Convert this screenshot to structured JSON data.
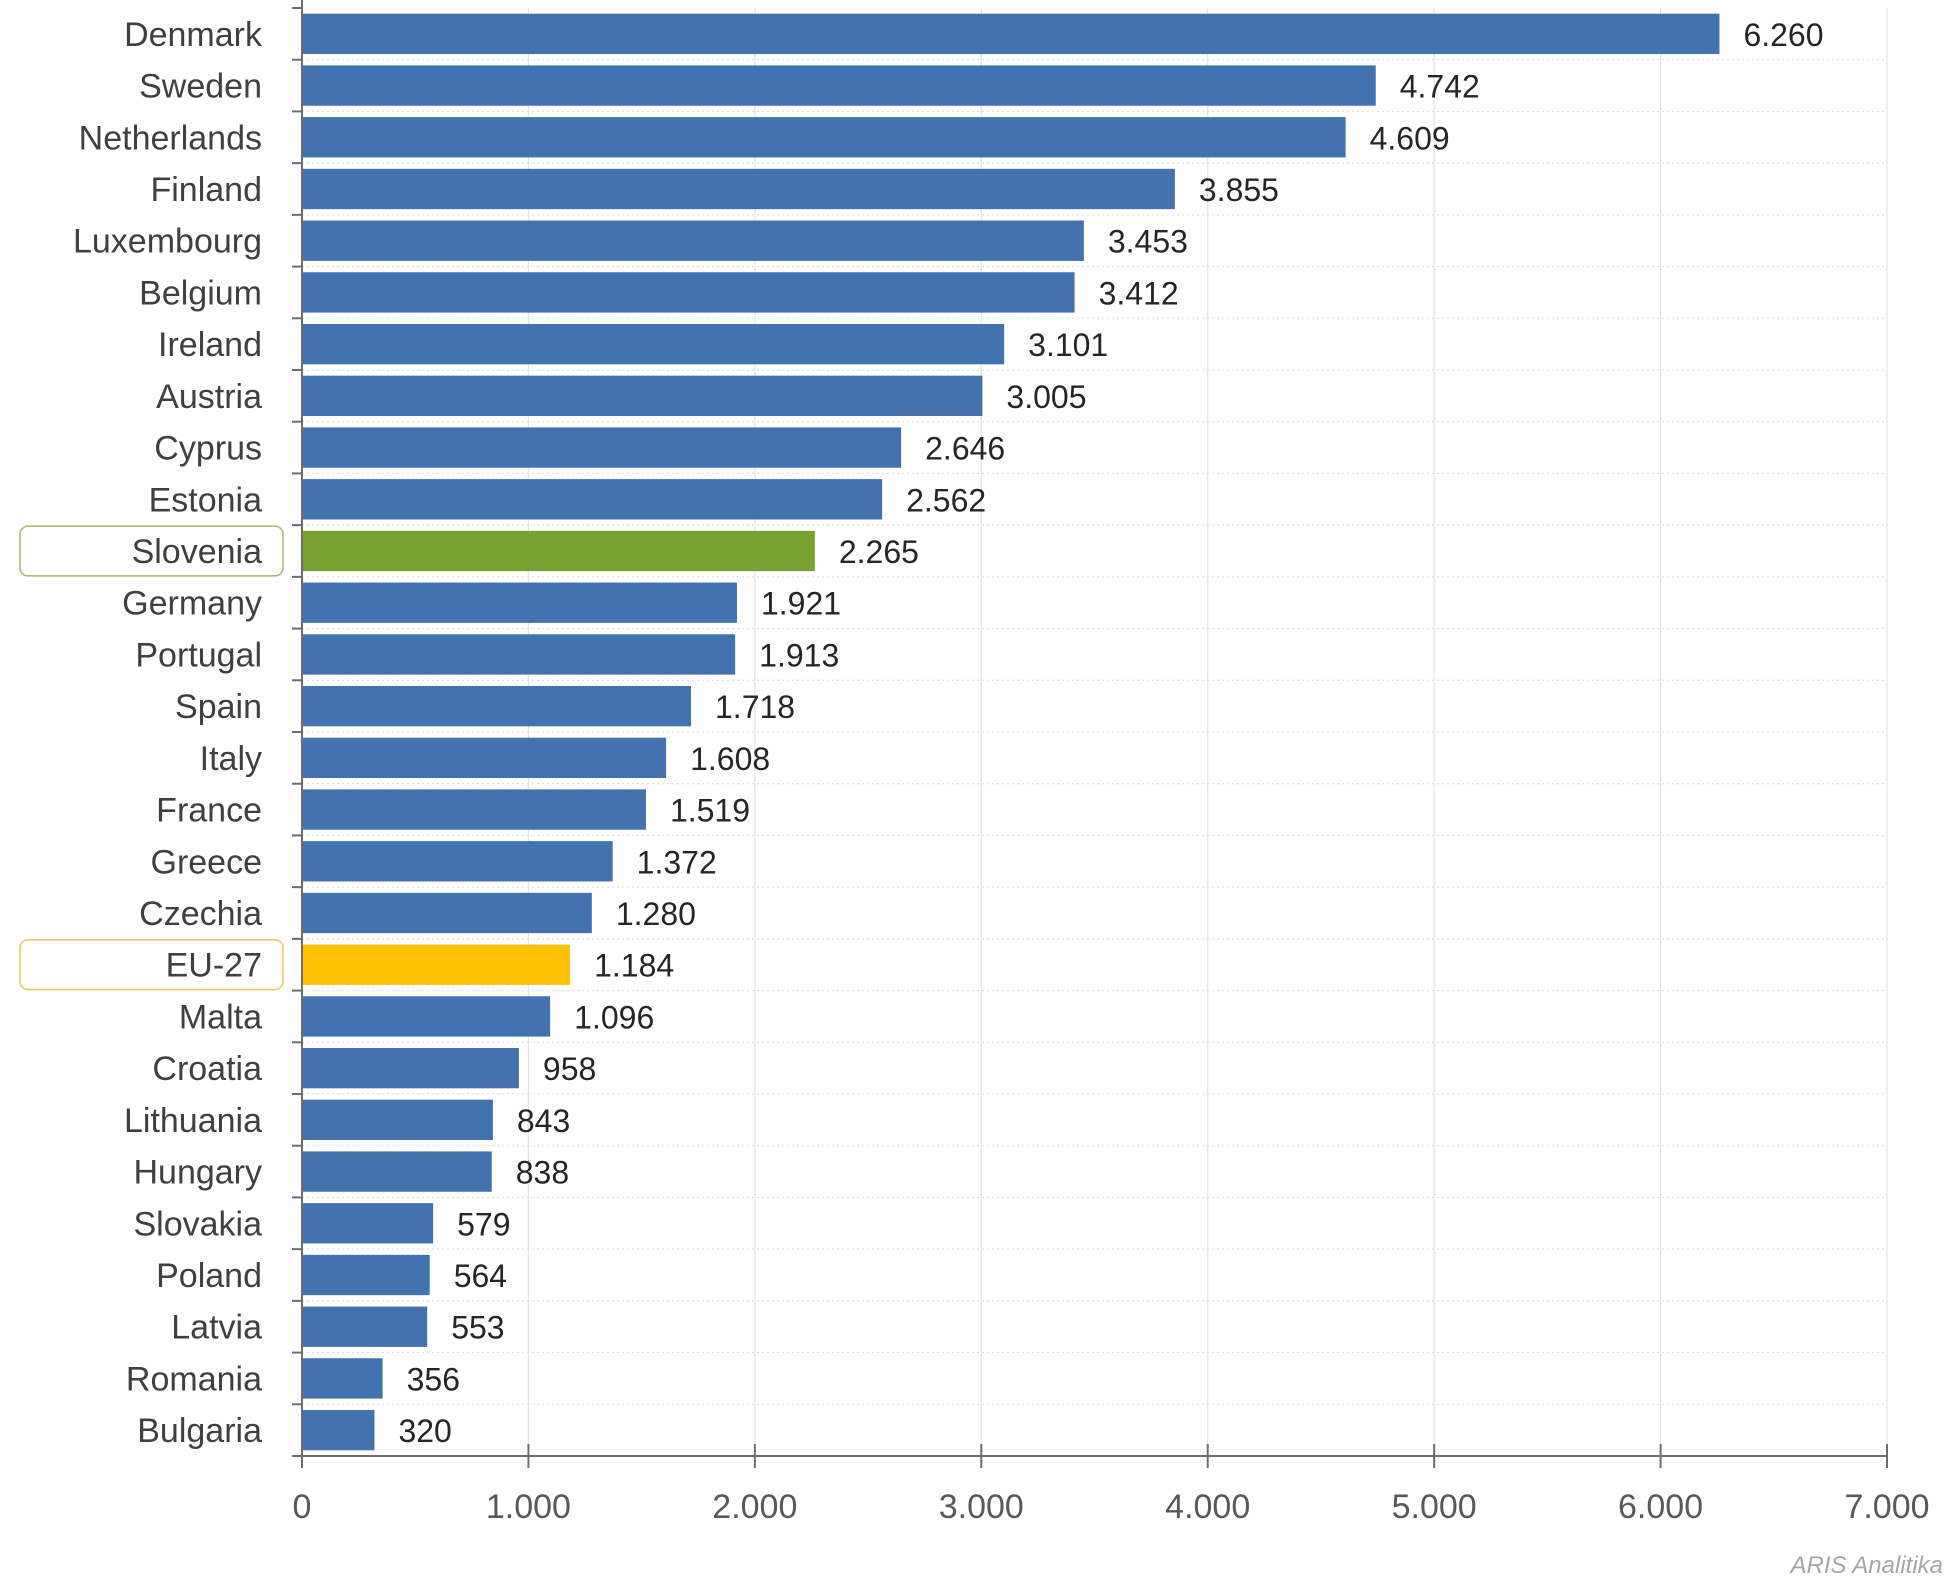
{
  "chart_data": {
    "type": "bar",
    "orientation": "horizontal",
    "title": "",
    "xlabel": "",
    "ylabel": "",
    "xlim": [
      0,
      7000
    ],
    "x_ticks": [
      "0",
      "1.000",
      "2.000",
      "3.000",
      "4.000",
      "5.000",
      "6.000",
      "7.000"
    ],
    "x_tick_values": [
      0,
      1000,
      2000,
      3000,
      4000,
      5000,
      6000,
      7000
    ],
    "grid": true,
    "categories": [
      "Denmark",
      "Sweden",
      "Netherlands",
      "Finland",
      "Luxembourg",
      "Belgium",
      "Ireland",
      "Austria",
      "Cyprus",
      "Estonia",
      "Slovenia",
      "Germany",
      "Portugal",
      "Spain",
      "Italy",
      "France",
      "Greece",
      "Czechia",
      "EU-27",
      "Malta",
      "Croatia",
      "Lithuania",
      "Hungary",
      "Slovakia",
      "Poland",
      "Latvia",
      "Romania",
      "Bulgaria"
    ],
    "values": [
      6260,
      4742,
      4609,
      3855,
      3453,
      3412,
      3101,
      3005,
      2646,
      2562,
      2265,
      1921,
      1913,
      1718,
      1608,
      1519,
      1372,
      1280,
      1184,
      1096,
      958,
      843,
      838,
      579,
      564,
      553,
      356,
      320
    ],
    "value_labels": [
      "6.260",
      "4.742",
      "4.609",
      "3.855",
      "3.453",
      "3.412",
      "3.101",
      "3.005",
      "2.646",
      "2.562",
      "2.265",
      "1.921",
      "1.913",
      "1.718",
      "1.608",
      "1.519",
      "1.372",
      "1.280",
      "1.184",
      "1.096",
      "958",
      "843",
      "838",
      "579",
      "564",
      "553",
      "356",
      "320"
    ],
    "bar_color": "#4372b0",
    "highlights": [
      {
        "category": "Slovenia",
        "color": "#77a22f",
        "outline": "#b5b87a"
      },
      {
        "category": "EU-27",
        "color": "#ffc000",
        "outline": "#f0c86c"
      }
    ]
  },
  "source_note": "ARIS Analitika"
}
